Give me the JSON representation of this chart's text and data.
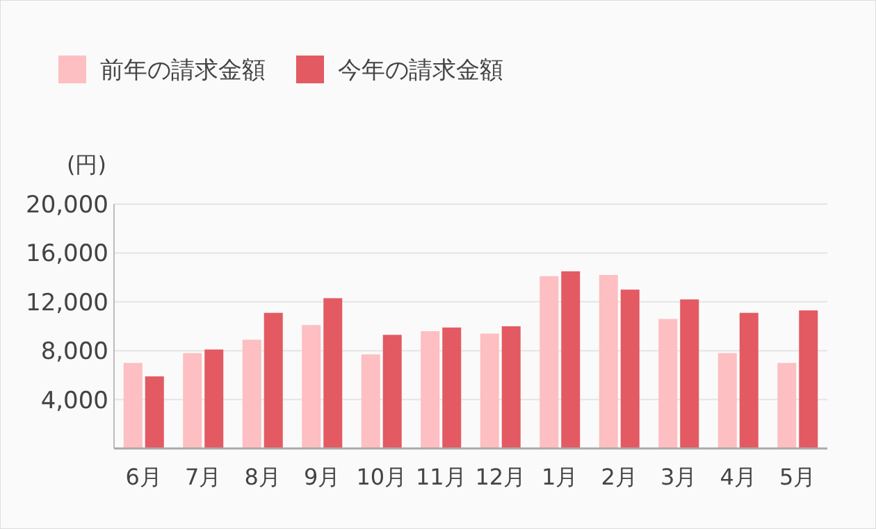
{
  "chart_data": {
    "type": "bar",
    "ylabel": "(円)",
    "categories": [
      "6月",
      "7月",
      "8月",
      "9月",
      "10月",
      "11月",
      "12月",
      "1月",
      "2月",
      "3月",
      "4月",
      "5月"
    ],
    "series": [
      {
        "name": "前年の請求金額",
        "color": "#fdbfc1",
        "values": [
          7000,
          7800,
          8900,
          10100,
          7700,
          9600,
          9400,
          14100,
          14200,
          10600,
          7800,
          7000
        ]
      },
      {
        "name": "今年の請求金額",
        "color": "#e35a62",
        "values": [
          5900,
          8100,
          11100,
          12300,
          9300,
          9900,
          10000,
          14500,
          13000,
          12200,
          11100,
          11300
        ]
      }
    ],
    "ylim": [
      0,
      20000
    ],
    "yticks": [
      {
        "value": 4000,
        "label": "4,000"
      },
      {
        "value": 8000,
        "label": "8,000"
      },
      {
        "value": 12000,
        "label": "12,000"
      },
      {
        "value": 16000,
        "label": "16,000"
      },
      {
        "value": 20000,
        "label": "20,000"
      }
    ],
    "grid": "y",
    "legend": "top left"
  }
}
